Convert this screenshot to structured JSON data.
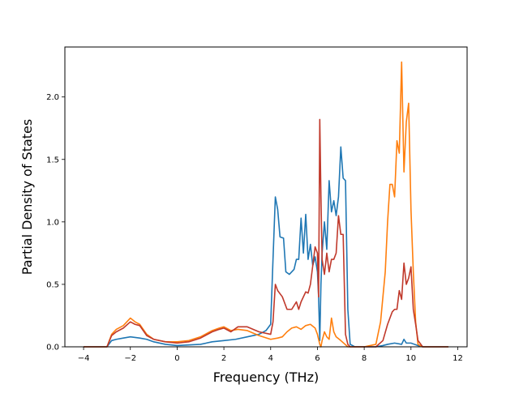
{
  "chart_data": {
    "type": "line",
    "title": "",
    "xlabel": "Frequency (THz)",
    "ylabel": "Partial Density of States",
    "xlim": [
      -4.8,
      12.4
    ],
    "ylim": [
      0,
      2.4
    ],
    "xticks": [
      -4,
      -2,
      0,
      2,
      4,
      6,
      8,
      10,
      12
    ],
    "xtick_labels": [
      "−4",
      "−2",
      "0",
      "2",
      "4",
      "6",
      "8",
      "10",
      "12"
    ],
    "yticks": [
      0,
      0.5,
      1,
      1.5,
      2
    ],
    "ytick_labels": [
      "0.0",
      "0.5",
      "1.0",
      "1.5",
      "2.0"
    ],
    "grid": false,
    "legend": "none",
    "series": [
      {
        "color": "#1f77b4",
        "x": [
          -4.0,
          -3.0,
          -2.8,
          -2.6,
          -2.3,
          -2.0,
          -1.6,
          -1.3,
          -1.0,
          -0.5,
          0.0,
          0.5,
          1.0,
          1.5,
          2.0,
          2.5,
          3.0,
          3.5,
          3.8,
          4.0,
          4.1,
          4.2,
          4.3,
          4.4,
          4.55,
          4.65,
          4.8,
          5.0,
          5.1,
          5.2,
          5.3,
          5.4,
          5.5,
          5.6,
          5.7,
          5.8,
          5.9,
          6.0,
          6.05,
          6.1,
          6.15,
          6.2,
          6.3,
          6.4,
          6.5,
          6.6,
          6.7,
          6.8,
          6.9,
          7.0,
          7.1,
          7.2,
          7.3,
          7.4,
          7.6,
          8.0,
          8.5,
          8.8,
          9.0,
          9.3,
          9.6,
          9.7,
          9.8,
          10.0,
          10.3,
          10.5,
          11.0,
          11.6
        ],
        "values": [
          0.0,
          0.0,
          0.05,
          0.06,
          0.07,
          0.08,
          0.07,
          0.06,
          0.04,
          0.02,
          0.01,
          0.015,
          0.02,
          0.04,
          0.05,
          0.06,
          0.08,
          0.1,
          0.13,
          0.18,
          0.7,
          1.2,
          1.1,
          0.88,
          0.87,
          0.6,
          0.58,
          0.62,
          0.7,
          0.7,
          1.03,
          0.75,
          1.06,
          0.7,
          0.82,
          0.65,
          0.72,
          0.6,
          0.4,
          0.05,
          0.5,
          0.75,
          1.0,
          0.78,
          1.33,
          1.08,
          1.17,
          1.05,
          1.2,
          1.6,
          1.35,
          1.33,
          0.3,
          0.02,
          0.0,
          0.0,
          0.0,
          0.01,
          0.02,
          0.03,
          0.02,
          0.06,
          0.03,
          0.03,
          0.01,
          0.0,
          0.0,
          0.0
        ]
      },
      {
        "color": "#ff7f0e",
        "x": [
          -4.0,
          -3.0,
          -2.8,
          -2.6,
          -2.3,
          -2.0,
          -1.8,
          -1.6,
          -1.3,
          -1.0,
          -0.5,
          0.0,
          0.5,
          1.0,
          1.5,
          1.8,
          2.0,
          2.3,
          2.6,
          3.0,
          3.5,
          4.0,
          4.3,
          4.5,
          4.7,
          4.9,
          5.1,
          5.3,
          5.5,
          5.7,
          5.9,
          6.0,
          6.1,
          6.15,
          6.2,
          6.3,
          6.4,
          6.5,
          6.6,
          6.7,
          6.8,
          7.0,
          7.3,
          8.0,
          8.5,
          8.7,
          8.9,
          9.0,
          9.1,
          9.2,
          9.3,
          9.4,
          9.5,
          9.6,
          9.7,
          9.8,
          9.9,
          10.0,
          10.1,
          10.2,
          10.3,
          10.5,
          11.0,
          11.6
        ],
        "values": [
          0.0,
          0.0,
          0.1,
          0.14,
          0.17,
          0.23,
          0.2,
          0.18,
          0.1,
          0.06,
          0.04,
          0.04,
          0.05,
          0.08,
          0.13,
          0.15,
          0.16,
          0.13,
          0.14,
          0.13,
          0.09,
          0.06,
          0.07,
          0.08,
          0.12,
          0.15,
          0.16,
          0.14,
          0.17,
          0.18,
          0.15,
          0.1,
          0.02,
          0.0,
          0.05,
          0.12,
          0.08,
          0.06,
          0.23,
          0.12,
          0.08,
          0.05,
          0.0,
          0.0,
          0.02,
          0.2,
          0.6,
          1.0,
          1.3,
          1.3,
          1.2,
          1.65,
          1.55,
          2.28,
          1.4,
          1.8,
          1.95,
          1.1,
          0.6,
          0.2,
          0.02,
          0.0,
          0.0,
          0.0
        ]
      },
      {
        "color": "#c0392b",
        "x": [
          -4.0,
          -3.0,
          -2.8,
          -2.6,
          -2.3,
          -2.0,
          -1.8,
          -1.6,
          -1.3,
          -1.0,
          -0.5,
          0.0,
          0.5,
          1.0,
          1.5,
          1.8,
          2.0,
          2.3,
          2.6,
          3.0,
          3.5,
          4.0,
          4.1,
          4.2,
          4.3,
          4.5,
          4.7,
          4.9,
          5.1,
          5.2,
          5.3,
          5.5,
          5.6,
          5.7,
          5.9,
          6.0,
          6.05,
          6.1,
          6.15,
          6.2,
          6.3,
          6.4,
          6.5,
          6.6,
          6.7,
          6.8,
          6.9,
          7.0,
          7.1,
          7.2,
          7.3,
          7.4,
          7.6,
          8.0,
          8.5,
          8.8,
          9.0,
          9.2,
          9.3,
          9.4,
          9.5,
          9.6,
          9.7,
          9.8,
          9.9,
          10.0,
          10.1,
          10.2,
          10.3,
          10.5,
          11.0,
          11.6
        ],
        "values": [
          0.0,
          0.0,
          0.09,
          0.12,
          0.15,
          0.2,
          0.18,
          0.17,
          0.09,
          0.06,
          0.04,
          0.03,
          0.04,
          0.07,
          0.12,
          0.14,
          0.15,
          0.12,
          0.16,
          0.16,
          0.12,
          0.1,
          0.2,
          0.5,
          0.45,
          0.4,
          0.3,
          0.3,
          0.36,
          0.3,
          0.36,
          0.44,
          0.43,
          0.5,
          0.8,
          0.75,
          0.4,
          1.82,
          1.2,
          0.7,
          0.58,
          0.75,
          0.6,
          0.7,
          0.7,
          0.75,
          1.05,
          0.9,
          0.9,
          0.1,
          0.02,
          0.0,
          0.0,
          0.0,
          0.0,
          0.05,
          0.18,
          0.28,
          0.3,
          0.3,
          0.45,
          0.38,
          0.67,
          0.5,
          0.55,
          0.64,
          0.3,
          0.18,
          0.05,
          0.0,
          0.0,
          0.0
        ]
      }
    ]
  }
}
